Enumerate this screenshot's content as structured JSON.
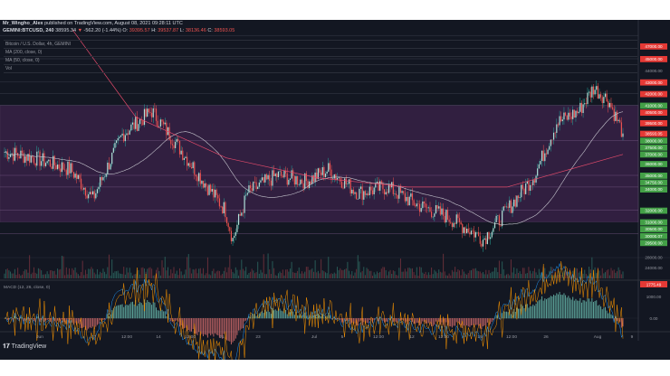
{
  "header": {
    "publisher": "Mr_Wingho_Alex",
    "published_text": "published on TradingView.com, August 08, 2021 09:28:11 UTC",
    "symbol": "GEMINI:BTCUSD, 240",
    "last": "38595.34",
    "change": "-562.20 (-1.44%)",
    "o_label": "O:",
    "o": "39395.57",
    "h_label": "H:",
    "h": "39537.87",
    "l_label": "L:",
    "l": "38136.46",
    "c_label": "C:",
    "c": "38593.05"
  },
  "legend": [
    "Bitcoin / U.S. Dollar, 4h, GEMINI",
    "MA (200, close, 0)",
    "MA (50, close, 0)",
    "Vol"
  ],
  "footer": {
    "brand": "TradingView"
  },
  "colors": {
    "background": "#131722",
    "up": "#26a69a",
    "down": "#ef5350",
    "ma200": "#e04a6a",
    "ma50": "#c8c8d0",
    "zone": "#6a2f7a",
    "label_red": "#e53935",
    "label_green": "#43a047"
  },
  "chart_data": {
    "type": "candlestick",
    "interval": "4h",
    "x_ticks": [
      "Jun",
      "7",
      "12:00",
      "14",
      "12:00",
      "21",
      "23",
      "Jul",
      "5",
      "12:00",
      "12",
      "12:00",
      "19",
      "12:00",
      "26",
      "Aug",
      "9"
    ],
    "price_path_approx": [
      [
        0,
        37000
      ],
      [
        20,
        36500
      ],
      [
        45,
        35500
      ],
      [
        60,
        33000
      ],
      [
        80,
        38500
      ],
      [
        100,
        40500
      ],
      [
        115,
        38000
      ],
      [
        135,
        34500
      ],
      [
        150,
        32000
      ],
      [
        155,
        29500
      ],
      [
        165,
        33500
      ],
      [
        185,
        35000
      ],
      [
        205,
        34500
      ],
      [
        220,
        35500
      ],
      [
        240,
        33500
      ],
      [
        260,
        34000
      ],
      [
        280,
        32500
      ],
      [
        300,
        31500
      ],
      [
        320,
        30000
      ],
      [
        325,
        29500
      ],
      [
        340,
        31800
      ],
      [
        360,
        35000
      ],
      [
        375,
        39500
      ],
      [
        390,
        40500
      ],
      [
        400,
        42500
      ],
      [
        410,
        41500
      ],
      [
        420,
        38593
      ]
    ],
    "y_axis_labels": [
      {
        "v": "47000.00",
        "c": "red"
      },
      {
        "v": "45000.00",
        "c": "red"
      },
      {
        "v": "44000.00",
        "c": "plain"
      },
      {
        "v": "43000.00",
        "c": "red"
      },
      {
        "v": "42000.00",
        "c": "red"
      },
      {
        "v": "41000.00",
        "c": "green"
      },
      {
        "v": "40500.00",
        "c": "red"
      },
      {
        "v": "39500.00",
        "c": "red"
      },
      {
        "v": "38593.05",
        "c": "red"
      },
      {
        "v": "38000.00",
        "c": "green"
      },
      {
        "v": "37500.00",
        "c": "green"
      },
      {
        "v": "37000.00",
        "c": "green"
      },
      {
        "v": "36000.00",
        "c": "green"
      },
      {
        "v": "35000.00",
        "c": "green"
      },
      {
        "v": "34750.00",
        "c": "green"
      },
      {
        "v": "34000.00",
        "c": "green"
      },
      {
        "v": "32000.00",
        "c": "green"
      },
      {
        "v": "31000.00",
        "c": "green"
      },
      {
        "v": "30500.00",
        "c": "green"
      },
      {
        "v": "30000.07",
        "c": "green"
      },
      {
        "v": "29500.00",
        "c": "green"
      },
      {
        "v": "28000.00",
        "c": "plain"
      }
    ],
    "volume_axis": "24000.00",
    "macd": {
      "label": "MACD (12, 26, close, 0)",
      "value": "1775.49",
      "ticks": [
        "1000.00",
        "0.00"
      ]
    },
    "zone": [
      31000,
      41000
    ]
  }
}
